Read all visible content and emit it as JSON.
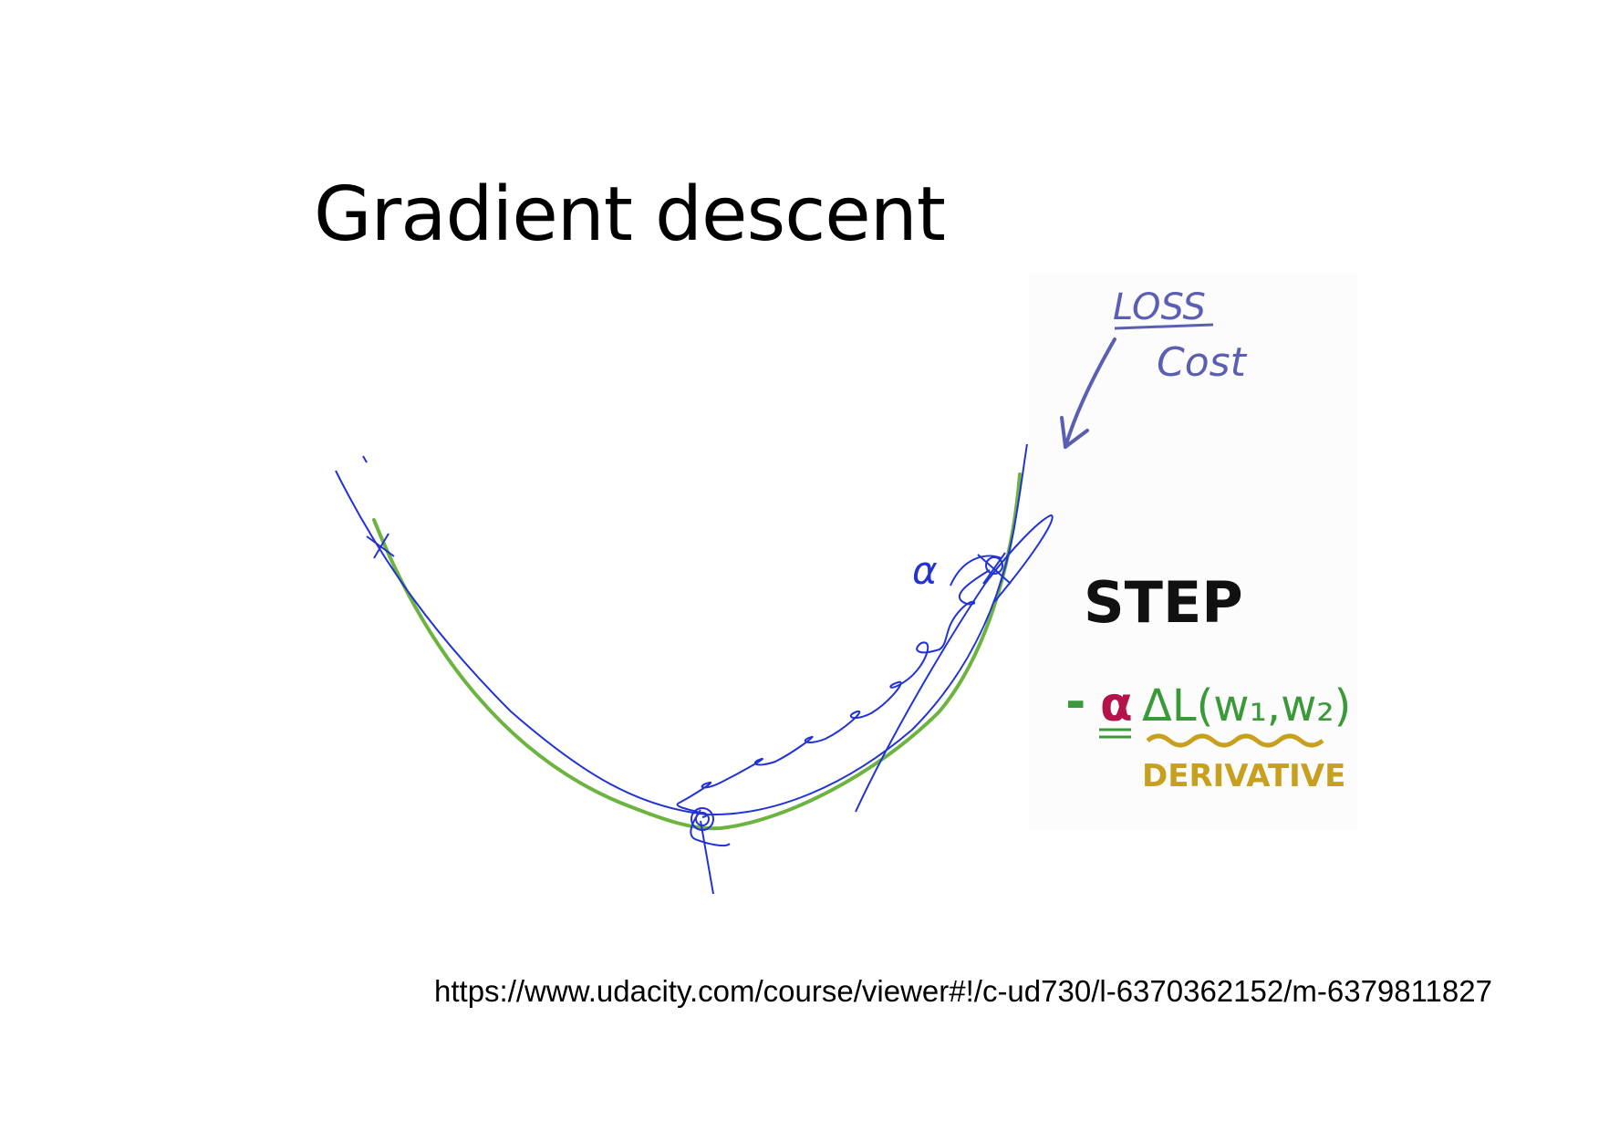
{
  "slide": {
    "title": "Gradient descent",
    "source_url": "https://www.udacity.com/course/viewer#!/c-ud730/l-6370362152/m-6379811827"
  },
  "annotations": {
    "loss_label": "LOSS",
    "cost_label": "Cost",
    "step_label": "STEP",
    "alpha_symbol": "α",
    "minus_sign": "-",
    "formula_alpha": "α",
    "formula_gradient": "ΔL(w₁,w₂)",
    "derivative_label": "DERIVATIVE"
  },
  "colors": {
    "title": "#000000",
    "ink_blue": "#2233d6",
    "loss_purple": "#5b5fb3",
    "curve_green": "#6db33f",
    "formula_green": "#3a9a3a",
    "alpha_red": "#b3124a",
    "derivative_gold": "#c8a020"
  }
}
